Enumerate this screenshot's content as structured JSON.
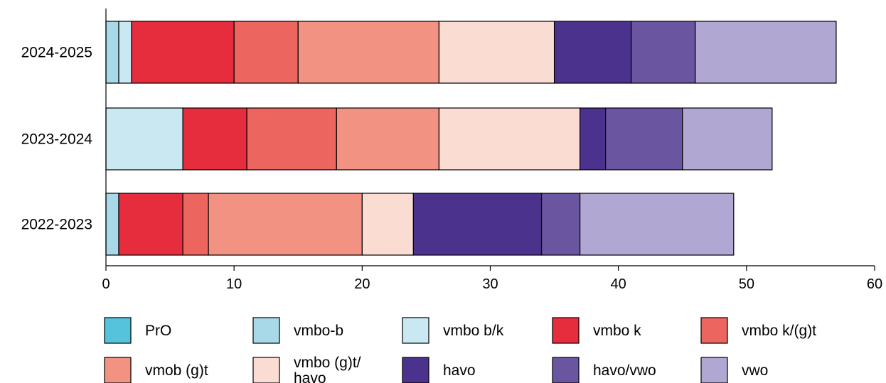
{
  "chart_data": {
    "type": "bar",
    "orientation": "horizontal",
    "stacked": true,
    "title": "",
    "xlabel": "",
    "ylabel": "",
    "xlim": [
      0,
      60
    ],
    "x_ticks": [
      "0",
      "10",
      "20",
      "30",
      "40",
      "50",
      "60"
    ],
    "grid": false,
    "legend_position": "bottom",
    "categories": [
      "2024-2025",
      "2023-2024",
      "2022-2023"
    ],
    "series": [
      {
        "name": "PrO",
        "color": "#55c3dc",
        "values": [
          0,
          0,
          0
        ]
      },
      {
        "name": "vmbo-b",
        "color": "#a8d9e8",
        "values": [
          1,
          0,
          1
        ]
      },
      {
        "name": "vmbo b/k",
        "color": "#c9e8f2",
        "values": [
          1,
          6,
          0
        ]
      },
      {
        "name": "vmbo k",
        "color": "#e52d3e",
        "values": [
          8,
          5,
          5
        ]
      },
      {
        "name": "vmbo k/(g)t",
        "color": "#ec655e",
        "values": [
          5,
          7,
          2
        ]
      },
      {
        "name": "vmob (g)t",
        "color": "#f29283",
        "values": [
          11,
          8,
          12
        ]
      },
      {
        "name": "vmbo (g)t/\nhavo",
        "color": "#fadcd3",
        "values": [
          9,
          11,
          4
        ]
      },
      {
        "name": "havo",
        "color": "#4b338d",
        "values": [
          6,
          2,
          10
        ]
      },
      {
        "name": "havo/vwo",
        "color": "#6a56a0",
        "values": [
          5,
          6,
          3
        ]
      },
      {
        "name": "vwo",
        "color": "#b1a7d3",
        "values": [
          11,
          7,
          12
        ]
      }
    ]
  }
}
